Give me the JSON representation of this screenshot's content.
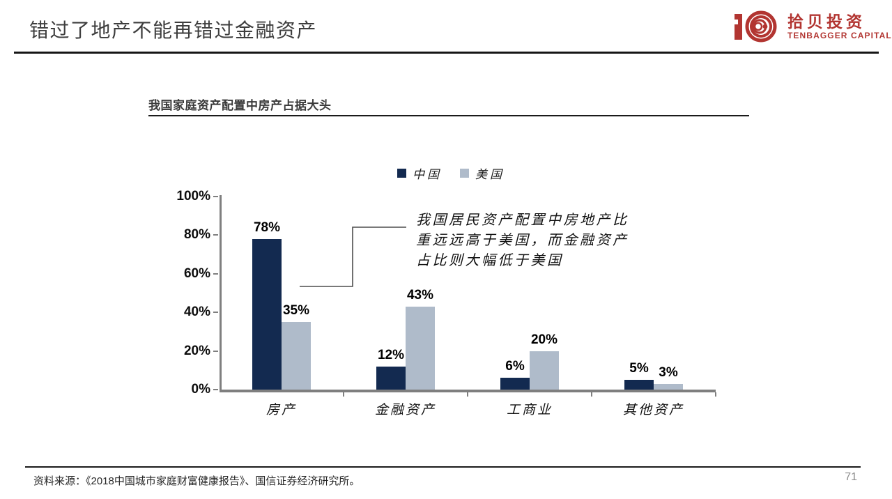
{
  "header": {
    "title": "错过了地产不能再错过金融资产",
    "logo": {
      "cn": "拾贝投资",
      "en": "TENBAGGER CAPITAL",
      "color": "#b23531"
    }
  },
  "chart": {
    "title": "我国家庭资产配置中房产占据大头",
    "annotation_lines": [
      "我国居民资产配置中房地产比",
      "重远远高于美国，而金融资产",
      "占比则大幅低于美国"
    ]
  },
  "chart_data": {
    "type": "bar",
    "title": "我国家庭资产配置中房产占据大头",
    "categories": [
      "房产",
      "金融资产",
      "工商业",
      "其他资产"
    ],
    "series": [
      {
        "name": "中国",
        "color": "#132a50",
        "values": [
          78,
          12,
          6,
          5
        ]
      },
      {
        "name": "美国",
        "color": "#afbbca",
        "values": [
          35,
          43,
          20,
          3
        ]
      }
    ],
    "value_suffix": "%",
    "ylim": [
      0,
      100
    ],
    "y_ticks": [
      "0%",
      "20%",
      "40%",
      "60%",
      "80%",
      "100%"
    ],
    "grid": false,
    "legend_position": "top",
    "annotation": "我国居民资产配置中房地产比重远远高于美国，而金融资产占比则大幅低于美国"
  },
  "footer": {
    "source": "资料来源：《2018中国城市家庭财富健康报告》、国信证券经济研究所。",
    "page": "71"
  }
}
